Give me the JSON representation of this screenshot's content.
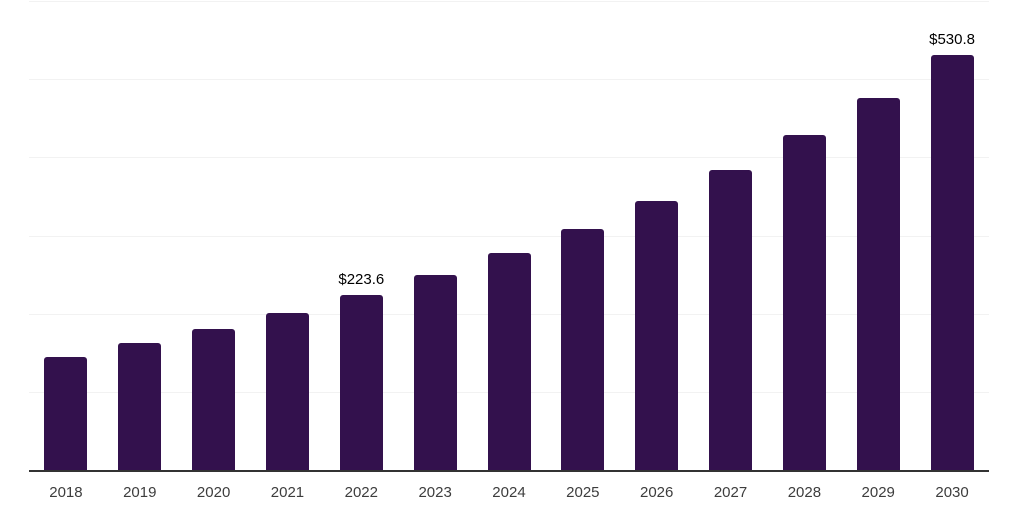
{
  "chart_data": {
    "type": "bar",
    "title": "",
    "xlabel": "",
    "ylabel": "",
    "categories": [
      "2018",
      "2019",
      "2020",
      "2021",
      "2022",
      "2023",
      "2024",
      "2025",
      "2026",
      "2027",
      "2028",
      "2029",
      "2030"
    ],
    "values": [
      145.0,
      162.0,
      180.0,
      200.5,
      223.6,
      249.0,
      277.5,
      308.0,
      344.0,
      383.5,
      428.0,
      476.5,
      530.8
    ],
    "value_labels": {
      "2022": "$223.6",
      "2030": "$530.8"
    },
    "ylim": [
      0,
      600
    ],
    "gridline_step": 100,
    "grid": true,
    "legend_position": "none",
    "colors": {
      "bar": "#33114d",
      "gridline": "#f2f2f2",
      "axis_line": "#333333",
      "tick_label": "#3d3d3d",
      "value_label": "#000000",
      "background": "#ffffff"
    }
  }
}
